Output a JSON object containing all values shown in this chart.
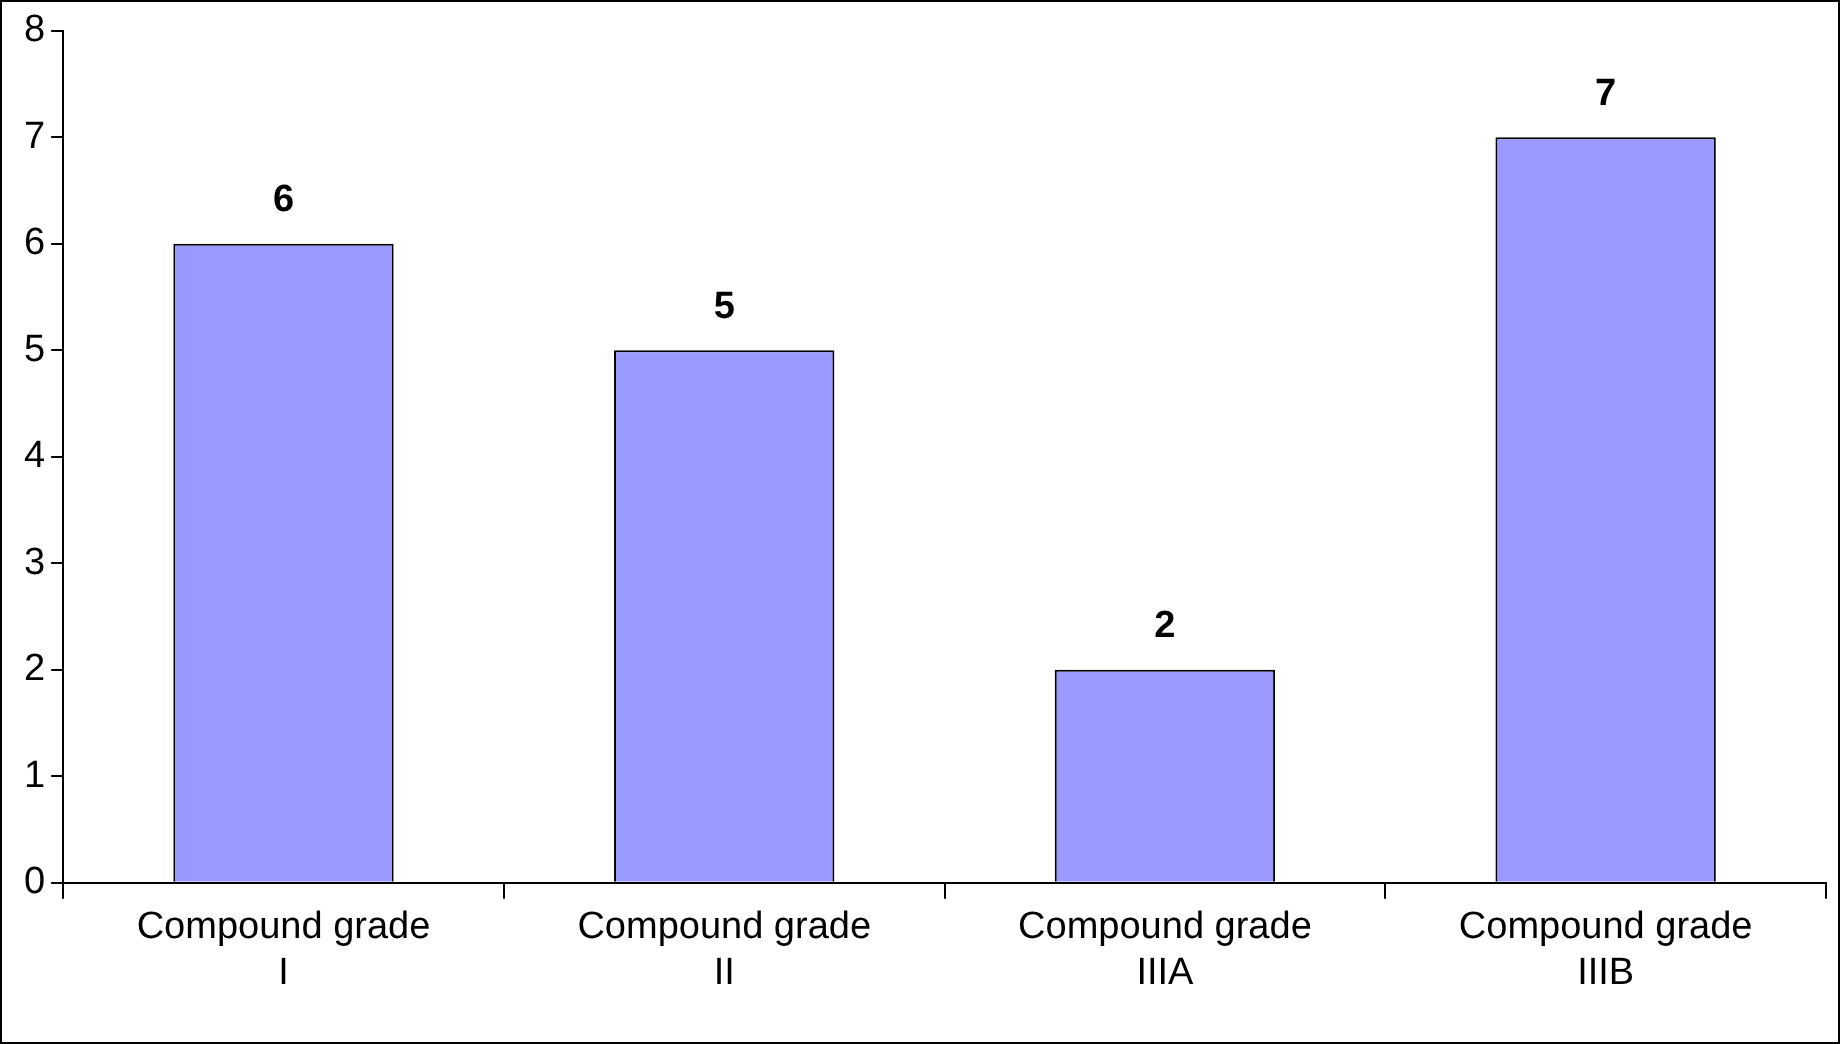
{
  "chart_data": {
    "type": "bar",
    "categories": [
      "Compound grade I",
      "Compound grade II",
      "Compound grade IIIA",
      "Compound grade IIIB"
    ],
    "values": [
      6,
      5,
      2,
      7
    ],
    "color": "#9999ff",
    "ylim": [
      0,
      8
    ],
    "yticks": [
      0,
      1,
      2,
      3,
      4,
      5,
      6,
      7,
      8
    ],
    "grid": false,
    "legend": false,
    "data_labels": true
  }
}
